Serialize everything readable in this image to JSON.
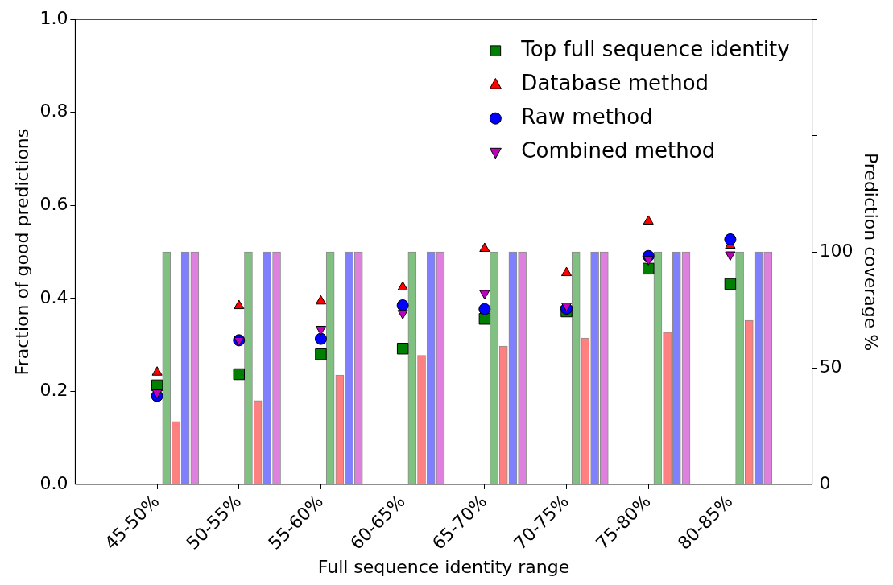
{
  "chart_data": {
    "type": "scatter",
    "xlabel": "Full sequence identity range",
    "ylabel": "Fraction of good predictions",
    "y2label": "Prediction coverage %",
    "categories": [
      "45-50%",
      "50-55%",
      "55-60%",
      "60-65%",
      "65-70%",
      "70-75%",
      "75-80%",
      "80-85%"
    ],
    "ylim": [
      0,
      1
    ],
    "yticks": [
      {
        "value": 0,
        "label": "0.0"
      },
      {
        "value": 0.2,
        "label": "0.2"
      },
      {
        "value": 0.4,
        "label": "0.4"
      },
      {
        "value": 0.6,
        "label": "0.6"
      },
      {
        "value": 0.8,
        "label": "0.8"
      },
      {
        "value": 1,
        "label": "1.0"
      }
    ],
    "y2lim": [
      0,
      200
    ],
    "y2ticks": [
      0,
      50,
      100,
      {
        "value": 150,
        "label": null
      },
      {
        "value": 200,
        "label": null
      }
    ],
    "legend": "top right",
    "grid": false,
    "series": [
      {
        "name": "Top full sequence identity",
        "marker": "square",
        "color": "#008000",
        "values": [
          0.213,
          0.237,
          0.28,
          0.292,
          0.356,
          0.372,
          0.464,
          0.431
        ]
      },
      {
        "name": "Database method",
        "marker": "triangle",
        "color": "#ff0000",
        "values": [
          0.241,
          0.384,
          0.394,
          0.424,
          0.507,
          0.455,
          0.566,
          0.514
        ]
      },
      {
        "name": "Raw method",
        "marker": "circle",
        "color": "#0000ff",
        "values": [
          0.19,
          0.31,
          0.313,
          0.385,
          0.377,
          0.378,
          0.491,
          0.527
        ]
      },
      {
        "name": "Combined method",
        "marker": "triangle-down",
        "color": "#bf00bf",
        "values": [
          0.197,
          0.31,
          0.334,
          0.368,
          0.411,
          0.384,
          0.484,
          0.494
        ]
      },
      {
        "type": "bar",
        "axis": "y2",
        "color": "#80c080",
        "values": [
          100,
          100,
          100,
          100,
          100,
          100,
          100,
          100
        ]
      },
      {
        "type": "bar",
        "axis": "y2",
        "color": "#ff8080",
        "values": [
          27,
          36,
          47,
          55.5,
          59.5,
          63,
          65.5,
          70.6
        ]
      },
      {
        "type": "bar",
        "axis": "y2",
        "color": "#8080ff",
        "values": [
          100,
          100,
          100,
          100,
          100,
          100,
          100,
          100
        ]
      },
      {
        "type": "bar",
        "axis": "y2",
        "color": "#df80df",
        "values": [
          100,
          100,
          100,
          100,
          100,
          100,
          100,
          100
        ]
      }
    ]
  }
}
